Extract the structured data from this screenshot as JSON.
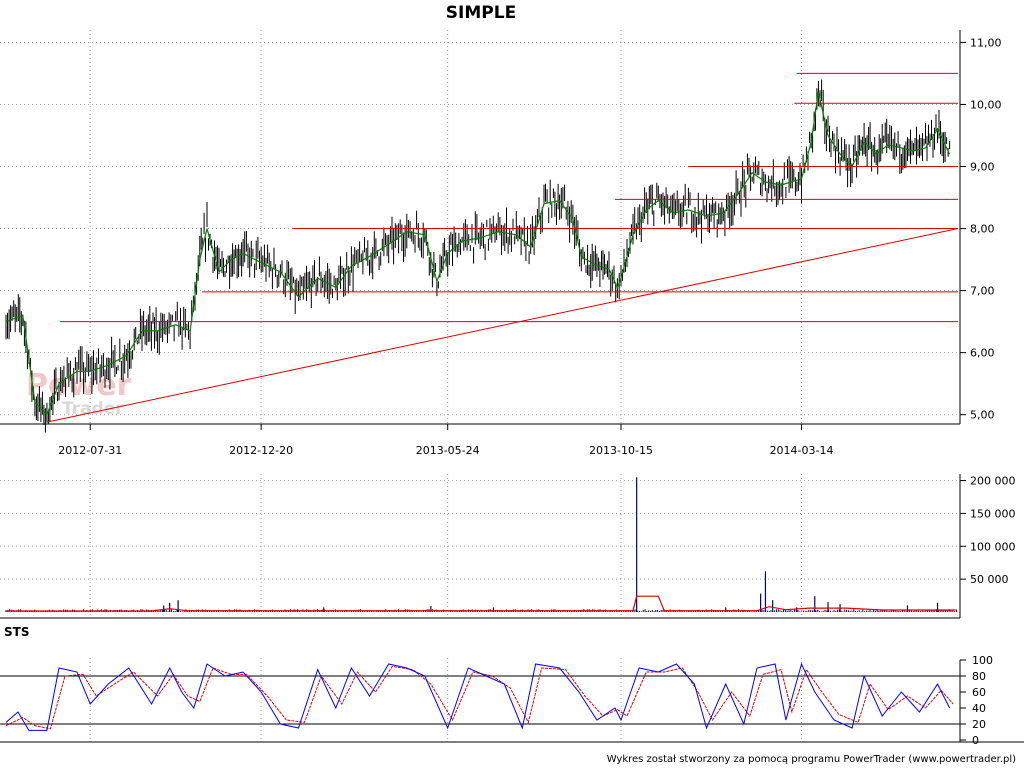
{
  "watermark": {
    "line1": "Power",
    "line2": "Trader"
  },
  "footer": "Wykres został stworzony za pomocą programu PowerTrader (www.powertrader.pl)",
  "colors": {
    "price": "#000000",
    "sma": "#008000",
    "lines": "#e00000",
    "volume": "#000080",
    "volume_avg": "#e00000",
    "sts_k": "#0000ff",
    "sts_d": "#e00000",
    "grid": "#a0a0a0"
  },
  "chart_data": [
    {
      "type": "line",
      "title": "SIMPLE",
      "x_tick_labels": [
        "2012-07-31",
        "2012-12-20",
        "2013-05-24",
        "2013-10-15",
        "2014-03-14"
      ],
      "xlim": [
        "2012-05-22",
        "2014-07-22"
      ],
      "ylim": [
        4.85,
        11.2
      ],
      "y_ticks": [
        5,
        6,
        7,
        8,
        9,
        10,
        11
      ],
      "y_tick_labels": [
        "5,00",
        "6,00",
        "7,00",
        "8,00",
        "9,00",
        "10,00",
        "11,00"
      ],
      "grid": true,
      "series": [
        {
          "kind": "price",
          "points": [
            [
              "2012-05-22",
              6.5
            ],
            [
              "2012-06-05",
              6.6
            ],
            [
              "2012-06-15",
              5.2
            ],
            [
              "2012-06-25",
              5.0
            ],
            [
              "2012-07-05",
              5.5
            ],
            [
              "2012-07-20",
              5.7
            ],
            [
              "2012-07-31",
              5.7
            ],
            [
              "2012-08-15",
              5.8
            ],
            [
              "2012-08-30",
              5.95
            ],
            [
              "2012-09-12",
              6.35
            ],
            [
              "2012-09-25",
              6.35
            ],
            [
              "2012-10-10",
              6.45
            ],
            [
              "2012-10-22",
              6.35
            ],
            [
              "2012-10-30",
              7.5
            ],
            [
              "2012-11-05",
              8.0
            ],
            [
              "2012-11-15",
              7.3
            ],
            [
              "2012-11-25",
              7.5
            ],
            [
              "2012-12-05",
              7.6
            ],
            [
              "2012-12-20",
              7.45
            ],
            [
              "2013-01-05",
              7.3
            ],
            [
              "2013-01-20",
              6.9
            ],
            [
              "2013-02-05",
              7.2
            ],
            [
              "2013-02-20",
              7.05
            ],
            [
              "2013-03-05",
              7.4
            ],
            [
              "2013-03-20",
              7.55
            ],
            [
              "2013-04-05",
              7.75
            ],
            [
              "2013-04-20",
              7.95
            ],
            [
              "2013-05-05",
              7.9
            ],
            [
              "2013-05-15",
              7.15
            ],
            [
              "2013-05-24",
              7.6
            ],
            [
              "2013-06-05",
              7.8
            ],
            [
              "2013-06-20",
              7.85
            ],
            [
              "2013-07-05",
              7.95
            ],
            [
              "2013-07-20",
              7.9
            ],
            [
              "2013-08-01",
              7.7
            ],
            [
              "2013-08-12",
              8.4
            ],
            [
              "2013-08-25",
              8.45
            ],
            [
              "2013-09-05",
              8.15
            ],
            [
              "2013-09-12",
              7.55
            ],
            [
              "2013-09-25",
              7.4
            ],
            [
              "2013-10-05",
              7.35
            ],
            [
              "2013-10-12",
              7.05
            ],
            [
              "2013-10-15",
              7.2
            ],
            [
              "2013-10-25",
              7.9
            ],
            [
              "2013-11-05",
              8.3
            ],
            [
              "2013-11-15",
              8.45
            ],
            [
              "2013-11-28",
              8.25
            ],
            [
              "2013-12-10",
              8.3
            ],
            [
              "2013-12-25",
              8.2
            ],
            [
              "2014-01-08",
              8.25
            ],
            [
              "2014-01-20",
              8.55
            ],
            [
              "2014-02-01",
              8.9
            ],
            [
              "2014-02-12",
              8.75
            ],
            [
              "2014-02-25",
              8.7
            ],
            [
              "2014-03-05",
              8.75
            ],
            [
              "2014-03-14",
              8.8
            ],
            [
              "2014-03-22",
              9.4
            ],
            [
              "2014-03-28",
              10.2
            ],
            [
              "2014-04-05",
              9.5
            ],
            [
              "2014-04-15",
              9.2
            ],
            [
              "2014-04-25",
              9.0
            ],
            [
              "2014-05-05",
              9.4
            ],
            [
              "2014-05-15",
              9.2
            ],
            [
              "2014-05-25",
              9.35
            ],
            [
              "2014-06-05",
              9.3
            ],
            [
              "2014-06-15",
              9.25
            ],
            [
              "2014-06-25",
              9.3
            ],
            [
              "2014-07-05",
              9.6
            ],
            [
              "2014-07-15",
              9.2
            ]
          ]
        },
        {
          "kind": "horizontal-lines",
          "lines": [
            [
              "2012-07-06",
              "2014-07-22",
              6.5
            ],
            [
              "2012-11-01",
              "2014-07-22",
              6.98
            ],
            [
              "2013-01-15",
              "2014-07-22",
              8.0
            ],
            [
              "2013-10-10",
              "2014-07-22",
              8.47
            ],
            [
              "2013-12-10",
              "2014-07-22",
              9.0
            ],
            [
              "2014-03-08",
              "2014-07-22",
              10.02
            ],
            [
              "2014-03-10",
              "2014-07-22",
              10.5
            ]
          ]
        },
        {
          "kind": "trend-line",
          "points": [
            [
              "2012-06-25",
              4.88
            ],
            [
              "2014-07-22",
              8.0
            ]
          ]
        }
      ]
    },
    {
      "type": "bar",
      "ylim": [
        0,
        210000
      ],
      "y_ticks": [
        50000,
        100000,
        150000,
        200000
      ],
      "y_tick_labels": [
        "50 000",
        "100 000",
        "150 000",
        "200 000"
      ],
      "grid": true,
      "series": [
        {
          "kind": "volume",
          "points": [
            [
              "2012-09-30",
              10000
            ],
            [
              "2012-10-05",
              14000
            ],
            [
              "2012-10-12",
              18000
            ],
            [
              "2013-02-10",
              7000
            ],
            [
              "2013-05-10",
              9000
            ],
            [
              "2013-07-01",
              7000
            ],
            [
              "2013-10-28",
              205000
            ],
            [
              "2014-01-10",
              7000
            ],
            [
              "2014-02-08",
              28000
            ],
            [
              "2014-02-12",
              62000
            ],
            [
              "2014-02-18",
              18000
            ],
            [
              "2014-03-10",
              7000
            ],
            [
              "2014-03-25",
              24000
            ],
            [
              "2014-04-05",
              15000
            ],
            [
              "2014-04-15",
              12000
            ],
            [
              "2014-06-10",
              10000
            ],
            [
              "2014-07-05",
              14000
            ]
          ]
        },
        {
          "kind": "volume-average",
          "points": [
            [
              "2012-05-22",
              1500
            ],
            [
              "2012-09-20",
              1500
            ],
            [
              "2012-10-05",
              5000
            ],
            [
              "2012-10-20",
              2000
            ],
            [
              "2013-10-25",
              2000
            ],
            [
              "2013-10-28",
              24000
            ],
            [
              "2013-11-15",
              24000
            ],
            [
              "2013-11-20",
              2000
            ],
            [
              "2014-02-05",
              2000
            ],
            [
              "2014-02-15",
              8000
            ],
            [
              "2014-03-01",
              3500
            ],
            [
              "2014-03-20",
              6000
            ],
            [
              "2014-04-20",
              6000
            ],
            [
              "2014-05-20",
              3000
            ],
            [
              "2014-07-20",
              3000
            ]
          ]
        }
      ]
    },
    {
      "type": "line",
      "title": "STS",
      "ylim": [
        0,
        100
      ],
      "y_ticks": [
        0,
        20,
        40,
        60,
        80,
        100
      ],
      "y_tick_labels": [
        "0",
        "20",
        "40",
        "60",
        "80",
        "100"
      ],
      "reference_lines": [
        20,
        80
      ],
      "series": [
        {
          "kind": "K",
          "points": [
            [
              "2012-05-22",
              22
            ],
            [
              "2012-06-01",
              35
            ],
            [
              "2012-06-10",
              12
            ],
            [
              "2012-06-25",
              12
            ],
            [
              "2012-07-05",
              90
            ],
            [
              "2012-07-20",
              85
            ],
            [
              "2012-07-31",
              45
            ],
            [
              "2012-08-15",
              70
            ],
            [
              "2012-09-01",
              90
            ],
            [
              "2012-09-20",
              45
            ],
            [
              "2012-10-05",
              90
            ],
            [
              "2012-10-15",
              60
            ],
            [
              "2012-10-25",
              40
            ],
            [
              "2012-11-05",
              95
            ],
            [
              "2012-11-20",
              80
            ],
            [
              "2012-12-05",
              85
            ],
            [
              "2012-12-20",
              60
            ],
            [
              "2013-01-05",
              20
            ],
            [
              "2013-01-20",
              15
            ],
            [
              "2013-02-05",
              88
            ],
            [
              "2013-02-20",
              40
            ],
            [
              "2013-03-05",
              90
            ],
            [
              "2013-03-20",
              55
            ],
            [
              "2013-04-05",
              95
            ],
            [
              "2013-04-20",
              90
            ],
            [
              "2013-05-05",
              80
            ],
            [
              "2013-05-24",
              15
            ],
            [
              "2013-06-10",
              90
            ],
            [
              "2013-06-25",
              80
            ],
            [
              "2013-07-10",
              70
            ],
            [
              "2013-07-25",
              15
            ],
            [
              "2013-08-05",
              95
            ],
            [
              "2013-08-25",
              90
            ],
            [
              "2013-09-10",
              60
            ],
            [
              "2013-09-25",
              25
            ],
            [
              "2013-10-10",
              40
            ],
            [
              "2013-10-15",
              25
            ],
            [
              "2013-10-30",
              90
            ],
            [
              "2013-11-15",
              85
            ],
            [
              "2013-11-30",
              95
            ],
            [
              "2013-12-15",
              70
            ],
            [
              "2013-12-25",
              15
            ],
            [
              "2014-01-10",
              70
            ],
            [
              "2014-01-25",
              20
            ],
            [
              "2014-02-05",
              90
            ],
            [
              "2014-02-20",
              95
            ],
            [
              "2014-03-01",
              25
            ],
            [
              "2014-03-14",
              95
            ],
            [
              "2014-03-25",
              60
            ],
            [
              "2014-04-10",
              25
            ],
            [
              "2014-04-25",
              15
            ],
            [
              "2014-05-05",
              80
            ],
            [
              "2014-05-20",
              30
            ],
            [
              "2014-06-05",
              60
            ],
            [
              "2014-06-20",
              35
            ],
            [
              "2014-07-05",
              70
            ],
            [
              "2014-07-15",
              40
            ]
          ]
        },
        {
          "kind": "D",
          "points": [
            [
              "2012-05-22",
              18
            ],
            [
              "2012-06-05",
              28
            ],
            [
              "2012-06-15",
              18
            ],
            [
              "2012-06-28",
              14
            ],
            [
              "2012-07-10",
              80
            ],
            [
              "2012-07-25",
              82
            ],
            [
              "2012-08-05",
              55
            ],
            [
              "2012-08-20",
              70
            ],
            [
              "2012-09-05",
              85
            ],
            [
              "2012-09-25",
              55
            ],
            [
              "2012-10-08",
              82
            ],
            [
              "2012-10-20",
              55
            ],
            [
              "2012-10-30",
              48
            ],
            [
              "2012-11-10",
              90
            ],
            [
              "2012-11-25",
              82
            ],
            [
              "2012-12-08",
              82
            ],
            [
              "2012-12-25",
              55
            ],
            [
              "2013-01-10",
              25
            ],
            [
              "2013-01-25",
              22
            ],
            [
              "2013-02-08",
              80
            ],
            [
              "2013-02-25",
              45
            ],
            [
              "2013-03-10",
              85
            ],
            [
              "2013-03-25",
              60
            ],
            [
              "2013-04-08",
              92
            ],
            [
              "2013-04-25",
              88
            ],
            [
              "2013-05-10",
              70
            ],
            [
              "2013-05-28",
              25
            ],
            [
              "2013-06-14",
              85
            ],
            [
              "2013-06-30",
              80
            ],
            [
              "2013-07-15",
              65
            ],
            [
              "2013-07-30",
              22
            ],
            [
              "2013-08-10",
              90
            ],
            [
              "2013-08-30",
              88
            ],
            [
              "2013-09-15",
              55
            ],
            [
              "2013-09-30",
              30
            ],
            [
              "2013-10-12",
              38
            ],
            [
              "2013-10-20",
              30
            ],
            [
              "2013-11-05",
              85
            ],
            [
              "2013-11-20",
              85
            ],
            [
              "2013-12-05",
              90
            ],
            [
              "2013-12-18",
              60
            ],
            [
              "2013-12-30",
              25
            ],
            [
              "2014-01-15",
              60
            ],
            [
              "2014-01-30",
              30
            ],
            [
              "2014-02-10",
              82
            ],
            [
              "2014-02-25",
              88
            ],
            [
              "2014-03-06",
              35
            ],
            [
              "2014-03-18",
              88
            ],
            [
              "2014-03-30",
              62
            ],
            [
              "2014-04-14",
              32
            ],
            [
              "2014-04-30",
              22
            ],
            [
              "2014-05-10",
              70
            ],
            [
              "2014-05-25",
              38
            ],
            [
              "2014-06-10",
              55
            ],
            [
              "2014-06-25",
              40
            ],
            [
              "2014-07-08",
              62
            ],
            [
              "2014-07-18",
              45
            ]
          ]
        }
      ]
    }
  ]
}
